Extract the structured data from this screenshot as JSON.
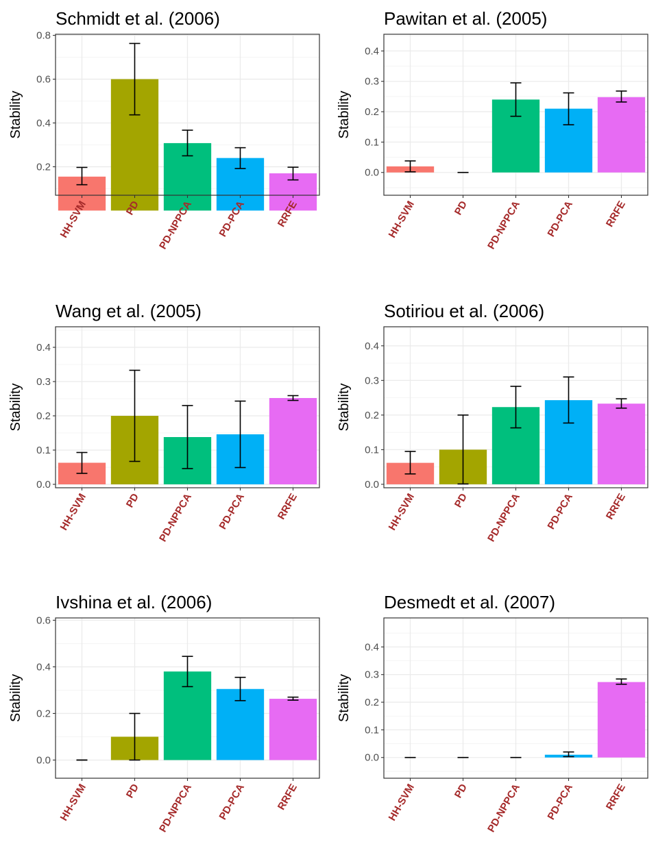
{
  "figure": {
    "ylabel": "Stability"
  },
  "chart_data": [
    {
      "type": "bar",
      "title": "Schmidt et al. (2006)",
      "xlabel": "",
      "ylabel": "Stability",
      "categories": [
        "HH-SVM",
        "PD",
        "PD-NPPCA",
        "PD-PCA",
        "RRFE"
      ],
      "values": [
        0.155,
        0.6,
        0.308,
        0.24,
        0.17
      ],
      "error_low": [
        0.118,
        0.437,
        0.25,
        0.192,
        0.14
      ],
      "error_high": [
        0.197,
        0.763,
        0.367,
        0.287,
        0.198
      ],
      "colors": [
        "#F8766D",
        "#A3A500",
        "#00BF7D",
        "#00B0F6",
        "#E76BF3"
      ],
      "ylim": [
        0.07,
        0.805
      ],
      "yticks": [
        0.2,
        0.4,
        0.6,
        0.8
      ],
      "yticklabels": [
        "0.2",
        "0.4",
        "0.6",
        "0.8"
      ]
    },
    {
      "type": "bar",
      "title": "Pawitan et al. (2005)",
      "xlabel": "",
      "ylabel": "Stability",
      "categories": [
        "HH-SVM",
        "PD",
        "PD-NPPCA",
        "PD-PCA",
        "RRFE"
      ],
      "values": [
        0.02,
        0.0,
        0.24,
        0.21,
        0.248
      ],
      "error_low": [
        0.002,
        0.0,
        0.185,
        0.157,
        0.232
      ],
      "error_high": [
        0.038,
        0.0,
        0.295,
        0.262,
        0.268
      ],
      "colors": [
        "#F8766D",
        "#A3A500",
        "#00BF7D",
        "#00B0F6",
        "#E76BF3"
      ],
      "ylim": [
        -0.075,
        0.455
      ],
      "yticks": [
        0.0,
        0.1,
        0.2,
        0.3,
        0.4
      ],
      "yticklabels": [
        "0.0",
        "0.1",
        "0.2",
        "0.3",
        "0.4"
      ]
    },
    {
      "type": "bar",
      "title": "Wang et al. (2005)",
      "xlabel": "",
      "ylabel": "Stability",
      "categories": [
        "HH-SVM",
        "PD",
        "PD-NPPCA",
        "PD-PCA",
        "RRFE"
      ],
      "values": [
        0.063,
        0.2,
        0.138,
        0.146,
        0.252
      ],
      "error_low": [
        0.032,
        0.067,
        0.046,
        0.049,
        0.245
      ],
      "error_high": [
        0.093,
        0.333,
        0.23,
        0.243,
        0.259
      ],
      "colors": [
        "#F8766D",
        "#A3A500",
        "#00BF7D",
        "#00B0F6",
        "#E76BF3"
      ],
      "ylim": [
        -0.01,
        0.46
      ],
      "yticks": [
        0.0,
        0.1,
        0.2,
        0.3,
        0.4
      ],
      "yticklabels": [
        "0.0",
        "0.1",
        "0.2",
        "0.3",
        "0.4"
      ]
    },
    {
      "type": "bar",
      "title": "Sotiriou et al. (2006)",
      "xlabel": "",
      "ylabel": "Stability",
      "categories": [
        "HH-SVM",
        "PD",
        "PD-NPPCA",
        "PD-PCA",
        "RRFE"
      ],
      "values": [
        0.062,
        0.1,
        0.223,
        0.243,
        0.233
      ],
      "error_low": [
        0.03,
        0.001,
        0.163,
        0.177,
        0.22
      ],
      "error_high": [
        0.095,
        0.2,
        0.283,
        0.31,
        0.247
      ],
      "colors": [
        "#F8766D",
        "#A3A500",
        "#00BF7D",
        "#00B0F6",
        "#E76BF3"
      ],
      "ylim": [
        -0.01,
        0.455
      ],
      "yticks": [
        0.0,
        0.1,
        0.2,
        0.3,
        0.4
      ],
      "yticklabels": [
        "0.0",
        "0.1",
        "0.2",
        "0.3",
        "0.4"
      ]
    },
    {
      "type": "bar",
      "title": "Ivshina et al. (2006)",
      "xlabel": "",
      "ylabel": "Stability",
      "categories": [
        "HH-SVM",
        "PD",
        "PD-NPPCA",
        "PD-PCA",
        "RRFE"
      ],
      "values": [
        0.0,
        0.1,
        0.38,
        0.305,
        0.263
      ],
      "error_low": [
        0.0,
        0.0,
        0.315,
        0.255,
        0.257
      ],
      "error_high": [
        0.0,
        0.2,
        0.445,
        0.355,
        0.27
      ],
      "colors": [
        "#F8766D",
        "#A3A500",
        "#00BF7D",
        "#00B0F6",
        "#E76BF3"
      ],
      "ylim": [
        -0.078,
        0.61
      ],
      "yticks": [
        0.0,
        0.2,
        0.4,
        0.6
      ],
      "yticklabels": [
        "0.0",
        "0.2",
        "0.4",
        "0.6"
      ]
    },
    {
      "type": "bar",
      "title": "Desmedt et al. (2007)",
      "xlabel": "",
      "ylabel": "Stability",
      "categories": [
        "HH-SVM",
        "PD",
        "PD-NPPCA",
        "PD-PCA",
        "RRFE"
      ],
      "values": [
        0.0,
        0.0,
        0.0,
        0.01,
        0.273
      ],
      "error_low": [
        0.0,
        0.0,
        0.0,
        0.003,
        0.265
      ],
      "error_high": [
        0.0,
        0.0,
        0.0,
        0.02,
        0.284
      ],
      "colors": [
        "#F8766D",
        "#A3A500",
        "#00BF7D",
        "#00B0F6",
        "#E76BF3"
      ],
      "ylim": [
        -0.075,
        0.505
      ],
      "yticks": [
        0.0,
        0.1,
        0.2,
        0.3,
        0.4
      ],
      "yticklabels": [
        "0.0",
        "0.1",
        "0.2",
        "0.3",
        "0.4"
      ]
    }
  ]
}
